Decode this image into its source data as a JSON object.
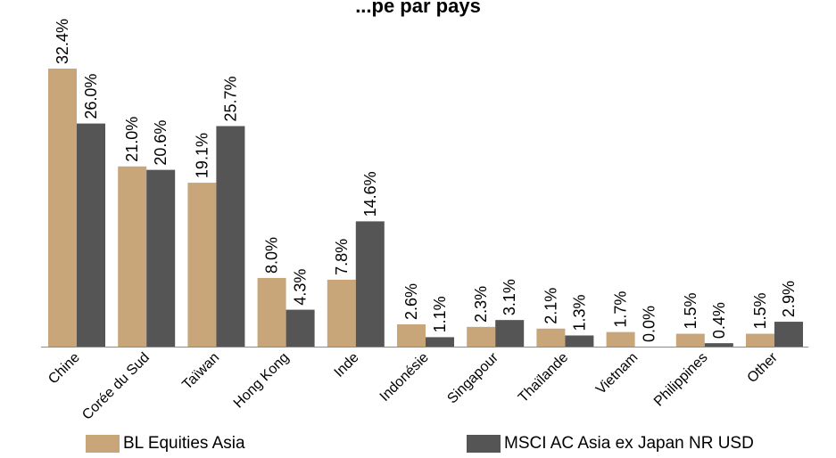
{
  "chart_data": {
    "type": "bar",
    "title": "...pe par pays",
    "categories": [
      "Chine",
      "Corée du Sud",
      "Taïwan",
      "Hong Kong",
      "Inde",
      "Indonésie",
      "Singapour",
      "Thaïlande",
      "Vietnam",
      "Philippines",
      "Other"
    ],
    "series": [
      {
        "name": "BL Equities Asia",
        "color": "#c8a67a",
        "values": [
          32.4,
          21.0,
          19.1,
          8.0,
          7.8,
          2.6,
          2.3,
          2.1,
          1.7,
          1.5,
          1.5
        ],
        "labels": [
          "32.4%",
          "21.0%",
          "19.1%",
          "8.0%",
          "7.8%",
          "2.6%",
          "2.3%",
          "2.1%",
          "1.7%",
          "1.5%",
          "1.5%"
        ]
      },
      {
        "name": "MSCI AC Asia ex Japan NR USD",
        "color": "#555555",
        "values": [
          26.0,
          20.6,
          25.7,
          4.3,
          14.6,
          1.1,
          3.1,
          1.3,
          0.0,
          0.4,
          2.9
        ],
        "labels": [
          "26.0%",
          "20.6%",
          "25.7%",
          "4.3%",
          "14.6%",
          "1.1%",
          "3.1%",
          "1.3%",
          "0.0%",
          "0.4%",
          "2.9%"
        ]
      }
    ],
    "ylim": [
      0,
      32.4
    ],
    "grid": false,
    "legend": "bottom"
  }
}
